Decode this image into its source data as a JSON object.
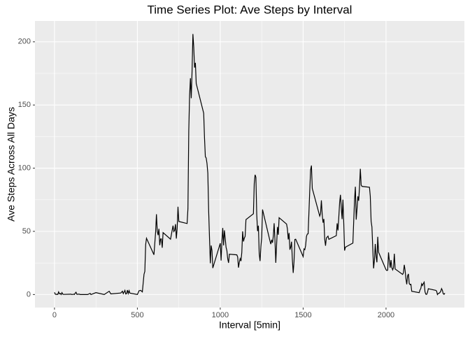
{
  "chart_data": {
    "type": "line",
    "title": "Time Series Plot: Ave Steps by Interval",
    "x_label": "Interval [5min]",
    "y_label": "Ave Steps Across All Days",
    "x": [
      0,
      5,
      10,
      15,
      20,
      25,
      30,
      35,
      40,
      45,
      50,
      55,
      100,
      105,
      110,
      115,
      120,
      125,
      130,
      135,
      140,
      145,
      150,
      155,
      200,
      215,
      220,
      250,
      300,
      330,
      340,
      400,
      410,
      415,
      425,
      430,
      435,
      440,
      445,
      450,
      455,
      500,
      510,
      520,
      530,
      540,
      545,
      550,
      555,
      600,
      610,
      615,
      620,
      625,
      630,
      635,
      640,
      645,
      650,
      655,
      700,
      715,
      720,
      725,
      730,
      735,
      740,
      745,
      750,
      800,
      805,
      810,
      815,
      820,
      825,
      830,
      835,
      840,
      845,
      850,
      855,
      900,
      905,
      910,
      915,
      920,
      925,
      930,
      935,
      940,
      945,
      950,
      955,
      1000,
      1005,
      1010,
      1015,
      1020,
      1025,
      1030,
      1035,
      1040,
      1045,
      1050,
      1055,
      1100,
      1105,
      1110,
      1115,
      1120,
      1125,
      1130,
      1135,
      1140,
      1145,
      1150,
      1155,
      1200,
      1205,
      1210,
      1215,
      1220,
      1225,
      1230,
      1235,
      1240,
      1245,
      1250,
      1255,
      1300,
      1305,
      1310,
      1315,
      1320,
      1325,
      1330,
      1335,
      1340,
      1345,
      1350,
      1355,
      1400,
      1405,
      1410,
      1415,
      1420,
      1425,
      1430,
      1435,
      1440,
      1445,
      1450,
      1455,
      1500,
      1505,
      1510,
      1515,
      1520,
      1525,
      1530,
      1535,
      1540,
      1545,
      1550,
      1555,
      1600,
      1605,
      1610,
      1615,
      1620,
      1625,
      1630,
      1635,
      1640,
      1645,
      1650,
      1655,
      1700,
      1705,
      1710,
      1715,
      1720,
      1725,
      1730,
      1735,
      1740,
      1745,
      1750,
      1755,
      1800,
      1805,
      1810,
      1815,
      1820,
      1825,
      1830,
      1835,
      1840,
      1845,
      1850,
      1855,
      1900,
      1905,
      1910,
      1915,
      1920,
      1925,
      1930,
      1935,
      1940,
      1945,
      1950,
      1955,
      2000,
      2005,
      2010,
      2015,
      2020,
      2025,
      2030,
      2035,
      2040,
      2045,
      2050,
      2055,
      2100,
      2105,
      2110,
      2115,
      2120,
      2125,
      2130,
      2135,
      2140,
      2145,
      2150,
      2155,
      2200,
      2205,
      2210,
      2215,
      2220,
      2225,
      2230,
      2235,
      2240,
      2245,
      2250,
      2255,
      2300,
      2305,
      2310,
      2315,
      2320,
      2325,
      2330,
      2335,
      2340,
      2345,
      2350,
      2355
    ],
    "values": [
      1.7,
      0.3,
      0.1,
      0.2,
      0.1,
      2.1,
      0.5,
      0.9,
      0,
      1.5,
      0.3,
      0.1,
      0.3,
      0,
      0.1,
      0.3,
      0,
      1.1,
      1.8,
      0.2,
      0.2,
      0.3,
      0.3,
      0,
      0,
      0.9,
      0,
      1.5,
      0,
      2.6,
      0.5,
      1.2,
      2.6,
      0.7,
      3.3,
      0.4,
      0.7,
      3.5,
      0.8,
      3.1,
      1.1,
      0,
      3,
      3.3,
      2.1,
      16,
      18.3,
      39.5,
      44.5,
      31.5,
      49.3,
      63.5,
      50,
      47,
      52,
      39,
      44,
      44,
      37,
      49,
      43.8,
      54.5,
      49.9,
      50.9,
      55.7,
      44.3,
      52.3,
      69.5,
      57.8,
      56.2,
      68,
      129.4,
      157.5,
      171.2,
      155.4,
      177.3,
      206.2,
      195.9,
      179.6,
      183.4,
      167,
      143.5,
      124,
      109.1,
      108.1,
      103.7,
      96,
      66.2,
      45.2,
      24.8,
      38.8,
      34.9,
      21,
      40.6,
      26.9,
      42.4,
      52.7,
      38.9,
      50.8,
      44.3,
      37.4,
      34.7,
      28.3,
      25.1,
      31.9,
      31.4,
      29.7,
      21.3,
      25.5,
      28.4,
      26.5,
      33.4,
      50,
      42,
      44.6,
      46,
      59.3,
      63.9,
      87.7,
      94.8,
      92.8,
      63.4,
      50.2,
      54.5,
      32.4,
      26.5,
      37.7,
      45.1,
      67.3,
      42.3,
      39.9,
      43.3,
      41,
      46.2,
      56.4,
      42.8,
      25.1,
      40,
      53.5,
      47.3,
      60.8,
      55.8,
      52,
      43.6,
      48.7,
      35.5,
      37.5,
      41.8,
      27.5,
      17.1,
      26.1,
      43.6,
      43.8,
      30,
      36.1,
      35.5,
      38.8,
      46,
      47.8,
      48.1,
      65.3,
      82.9,
      98.7,
      102.1,
      84,
      62.1,
      64.1,
      74.5,
      63.2,
      56.9,
      59.8,
      43.9,
      38.6,
      44.7,
      45.5,
      46.2,
      43.7,
      46.6,
      56.3,
      50.7,
      61.2,
      72.7,
      78.9,
      68.9,
      59.7,
      75.1,
      56.5,
      34.8,
      37.5,
      40.7,
      58,
      74.7,
      85.3,
      59.3,
      67.8,
      77.7,
      74.2,
      85.3,
      99.5,
      86.6,
      85.6,
      84.9,
      77.8,
      58,
      53.4,
      36.3,
      20.7,
      27.4,
      40,
      30.2,
      25.5,
      45.7,
      33.5,
      19.6,
      19,
      19.3,
      33.3,
      26.8,
      21.2,
      27.3,
      21.3,
      19.5,
      21.3,
      32.3,
      20.2,
      15.9,
      17.2,
      23.5,
      19.2,
      12.5,
      8.1,
      14.7,
      16.3,
      8.7,
      7.8,
      8.1,
      2.6,
      1.5,
      3.7,
      4.8,
      8.5,
      7.1,
      8.7,
      9.8,
      2.2,
      0.3,
      0.1,
      1.6,
      4.6,
      3.3,
      2.8,
      0,
      0.8,
      1,
      1.6,
      2.6,
      4.7,
      3.3,
      0.6,
      0.2,
      1.1
    ],
    "color": "#000000",
    "xlim": [
      -117.75,
      2472.75
    ],
    "xticks": [
      0,
      500,
      1000,
      1500,
      2000
    ],
    "ylim": [
      -10.3,
      216.5
    ],
    "yticks": [
      0,
      50,
      100,
      150,
      200
    ],
    "grid": true
  }
}
